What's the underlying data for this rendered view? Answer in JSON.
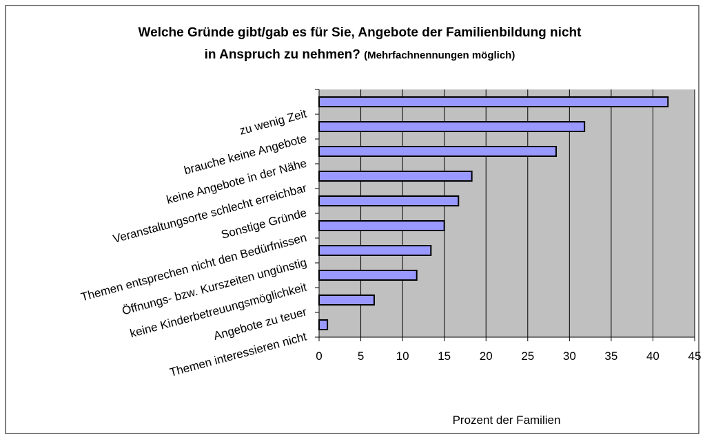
{
  "chart_data": {
    "type": "bar",
    "orientation": "horizontal",
    "title": [
      "Welche Gründe gibt/gab es für Sie, Angebote der Familienbildung nicht",
      "in Anspruch zu nehmen?"
    ],
    "subtitle": "(Mehrfachnennungen möglich)",
    "x_label": "Prozent der Familien",
    "categories": [
      "zu wenig Zeit",
      "brauche keine Angebote",
      "keine Angebote in der Nähe",
      "Veranstaltungsorte schlecht erreichbar",
      "Sonstige Gründe",
      "Themen entsprechen nicht den Bedürfnissen",
      "Öffnungs- bzw. Kurszeiten ungünstig",
      "keine Kinderbetreuungsmöglichkeit",
      "Angebote zu teuer",
      "Themen interessieren nicht"
    ],
    "values": [
      41.8,
      31.8,
      28.4,
      18.3,
      16.7,
      15.0,
      13.4,
      11.7,
      6.6,
      1.0
    ],
    "color": "#9999ff",
    "xlim": [
      0,
      45
    ],
    "xticks": [
      0,
      5,
      10,
      15,
      20,
      25,
      30,
      35,
      40,
      45
    ],
    "grid": true
  }
}
